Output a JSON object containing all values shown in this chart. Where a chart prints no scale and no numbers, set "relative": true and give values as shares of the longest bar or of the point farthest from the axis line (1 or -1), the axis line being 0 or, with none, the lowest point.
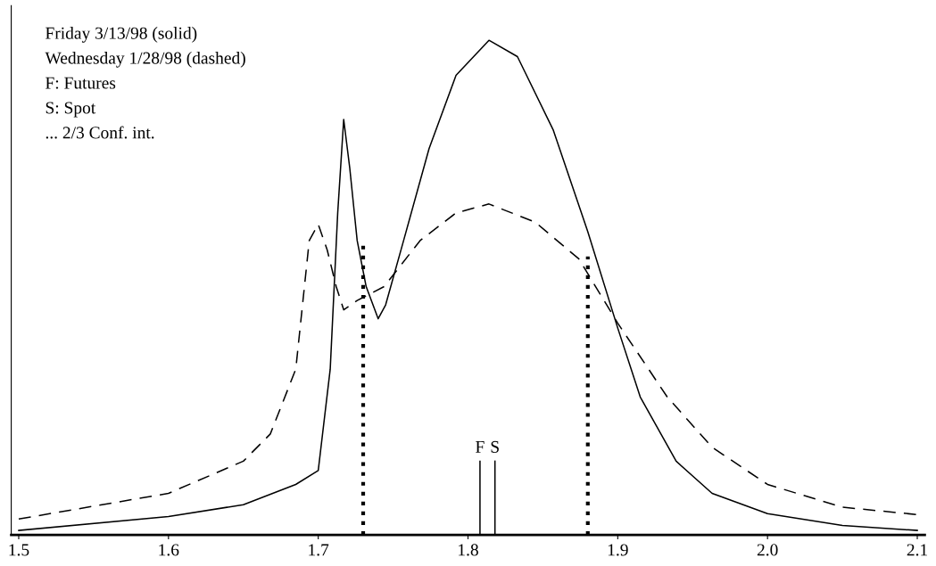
{
  "chart_data": {
    "type": "line",
    "relative": true,
    "legend": false,
    "grid": false,
    "tick_labels": "x",
    "xlim": [
      1.495,
      2.105
    ],
    "xticks": [
      1.5,
      1.6,
      1.7,
      1.8,
      1.9,
      {
        "value": 2.0,
        "label": "2.0"
      },
      2.1
    ],
    "annotations": [
      "Friday 3/13/98 (solid)",
      "Wednesday 1/28/98 (dashed)",
      "F: Futures",
      "S: Spot",
      "... 2/3 Conf. int."
    ],
    "series": [
      {
        "line_style": "solid",
        "color": "#000000",
        "x": [
          1.5,
          1.6,
          1.65,
          1.685,
          1.7,
          1.708,
          1.713,
          1.717,
          1.721,
          1.726,
          1.732,
          1.74,
          1.745,
          1.757,
          1.774,
          1.792,
          1.814,
          1.833,
          1.857,
          1.88,
          1.9,
          1.915,
          1.939,
          1.963,
          2.0,
          2.05,
          2.1
        ],
        "values": [
          0.009,
          0.037,
          0.061,
          0.102,
          0.13,
          0.335,
          0.651,
          0.84,
          0.743,
          0.595,
          0.502,
          0.437,
          0.465,
          0.595,
          0.781,
          0.929,
          1,
          0.967,
          0.818,
          0.613,
          0.418,
          0.279,
          0.149,
          0.084,
          0.043,
          0.019,
          0.009
        ]
      },
      {
        "line_style": "dashed",
        "color": "#000000",
        "x": [
          1.5,
          1.6,
          1.65,
          1.668,
          1.685,
          1.694,
          1.7,
          1.706,
          1.712,
          1.717,
          1.726,
          1.744,
          1.768,
          1.792,
          1.814,
          1.845,
          1.874,
          1.9,
          1.933,
          1.963,
          2.0,
          2.05,
          2.1
        ],
        "values": [
          0.032,
          0.084,
          0.149,
          0.204,
          0.335,
          0.595,
          0.628,
          0.576,
          0.502,
          0.455,
          0.474,
          0.502,
          0.595,
          0.651,
          0.669,
          0.632,
          0.558,
          0.428,
          0.279,
          0.177,
          0.102,
          0.056,
          0.041
        ]
      },
      {
        "line_style": "dotted",
        "color": "#000000",
        "x": [
          1.73,
          1.73
        ],
        "values": [
          0,
          0.586
        ]
      },
      {
        "line_style": "dotted",
        "color": "#000000",
        "x": [
          1.88,
          1.88
        ],
        "values": [
          0,
          0.563
        ]
      },
      {
        "line_style": "solid",
        "color": "#000000",
        "name": "F",
        "x": [
          1.808,
          1.808
        ],
        "values": [
          0,
          0.149
        ]
      },
      {
        "line_style": "solid",
        "color": "#000000",
        "name": "S",
        "x": [
          1.818,
          1.818
        ],
        "values": [
          0,
          0.149
        ]
      }
    ]
  }
}
